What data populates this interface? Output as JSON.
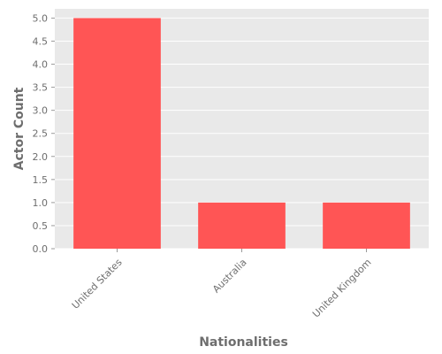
{
  "chart_data": {
    "type": "bar",
    "categories": [
      "United States",
      "Australia",
      "United Kingdom"
    ],
    "values": [
      5,
      1,
      1
    ],
    "xlabel": "Nationalities",
    "ylabel": "Actor Count",
    "ylim": [
      0,
      5.2
    ],
    "yticks": [
      "0.0",
      "0.5",
      "1.0",
      "1.5",
      "2.0",
      "2.5",
      "3.0",
      "3.5",
      "4.0",
      "4.5",
      "5.0"
    ],
    "grid": true,
    "bar_color": "#ff5555",
    "plot_background": "#e9e9e9",
    "grid_color": "#ffffff"
  }
}
